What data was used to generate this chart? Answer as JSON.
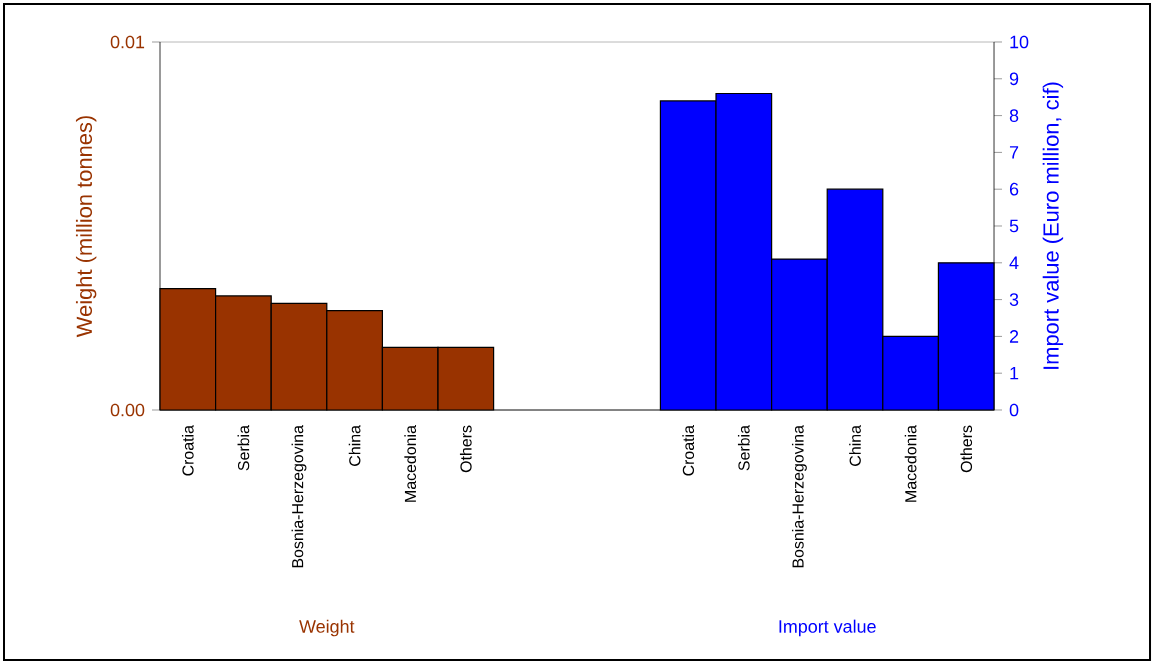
{
  "chart_data": {
    "type": "bar",
    "categories": [
      "Croatia",
      "Serbia",
      "Bosnia-Herzegovina",
      "China",
      "Macedonia",
      "Others",
      null,
      null,
      null,
      "Croatia",
      "Serbia",
      "Bosnia-Herzegovina",
      "China",
      "Macedonia",
      "Others"
    ],
    "series": [
      {
        "color": "#993300",
        "values": [
          0.0033,
          0.0031,
          0.0029,
          0.0027,
          0.0017,
          0.0017,
          null,
          null,
          null,
          null,
          null,
          null,
          null,
          null,
          null
        ]
      },
      {
        "color": "#0000ff",
        "axis": "y2",
        "values": [
          null,
          null,
          null,
          null,
          null,
          null,
          null,
          null,
          null,
          8.4,
          8.6,
          4.1,
          6.0,
          2.0,
          4.0
        ]
      }
    ],
    "ylabel": "Weight (million tonnes)",
    "y2label": "Import value (Euro million, cif)",
    "ylim": [
      0,
      0.01
    ],
    "yticks": [
      {
        "value": 0,
        "label": "0.00"
      },
      0.01
    ],
    "y2lim": [
      0,
      10
    ],
    "y2ticks": [
      0,
      1,
      2,
      3,
      4,
      5,
      6,
      7,
      8,
      9,
      10
    ],
    "grid": "y",
    "annotations": [
      "Weight",
      "Import value"
    ]
  }
}
